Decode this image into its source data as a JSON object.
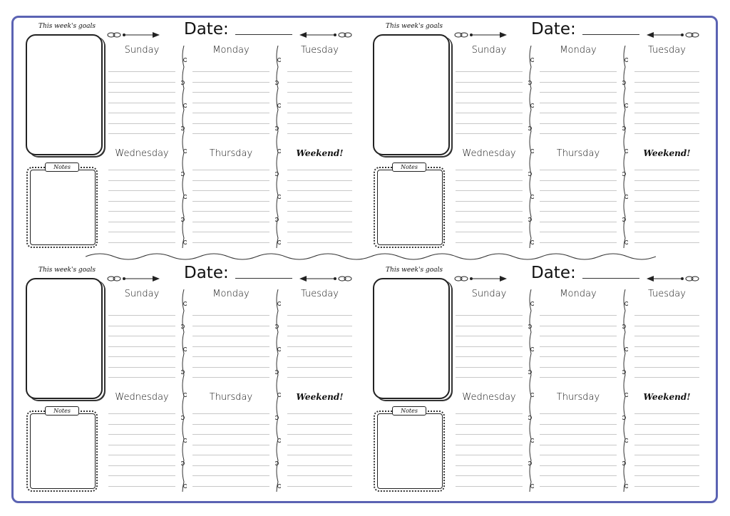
{
  "planners": [
    {
      "goals_title": "This week's goals",
      "notes_label": "Notes",
      "date_label": "Date:",
      "days": [
        "Sunday",
        "Monday",
        "Tuesday",
        "Wednesday",
        "Thursday",
        "Weekend!"
      ]
    },
    {
      "goals_title": "This week's goals",
      "notes_label": "Notes",
      "date_label": "Date:",
      "days": [
        "Sunday",
        "Monday",
        "Tuesday",
        "Wednesday",
        "Thursday",
        "Weekend!"
      ]
    },
    {
      "goals_title": "This week's goals",
      "notes_label": "Notes",
      "date_label": "Date:",
      "days": [
        "Sunday",
        "Monday",
        "Tuesday",
        "Wednesday",
        "Thursday",
        "Weekend!"
      ]
    },
    {
      "goals_title": "This week's goals",
      "notes_label": "Notes",
      "date_label": "Date:",
      "days": [
        "Sunday",
        "Monday",
        "Tuesday",
        "Wednesday",
        "Thursday",
        "Weekend!"
      ]
    }
  ],
  "colors": {
    "frame": "#5b63b3",
    "ink": "#111111",
    "rule": "#c8c8c8"
  },
  "icons": {
    "arrows": "leaf-arrow-icon",
    "dividers": "vine-divider-icon"
  }
}
